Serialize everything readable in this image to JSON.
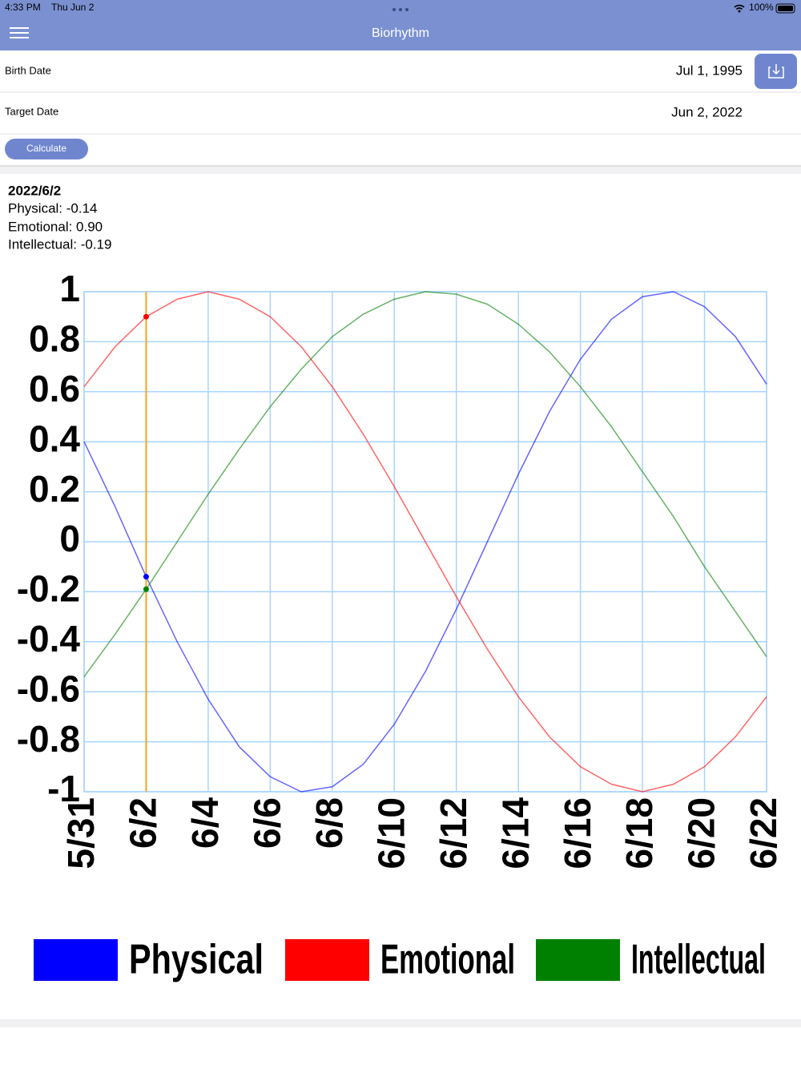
{
  "ui": {
    "status_bar": {
      "time": "4:33 PM",
      "date": "Thu Jun 2",
      "battery": "100%"
    },
    "header": {
      "title": "Biorhythm"
    },
    "form": {
      "birth_label": "Birth Date",
      "birth_value": "Jul 1, 1995",
      "target_label": "Target Date",
      "target_value": "Jun 2, 2022",
      "button": "Calculate"
    },
    "summary": {
      "date": "2022/6/2",
      "lines": [
        "Physical: -0.14",
        "Emotional: 0.90",
        "Intellectual: -0.19"
      ]
    }
  },
  "chart_data": {
    "type": "line",
    "categories": [
      "5/31",
      null,
      "6/2",
      null,
      "6/4",
      null,
      "6/6",
      null,
      "6/8",
      null,
      "6/10",
      null,
      "6/12",
      null,
      "6/14",
      null,
      "6/16",
      null,
      "6/18",
      null,
      "6/20",
      null,
      "6/22"
    ],
    "series": [
      {
        "name": "Physical",
        "color": "#0000ff",
        "values": [
          0.4,
          0.14,
          -0.14,
          -0.4,
          -0.63,
          -0.82,
          -0.94,
          -1.0,
          -0.98,
          -0.89,
          -0.73,
          -0.52,
          -0.27,
          0,
          0.27,
          0.52,
          0.73,
          0.89,
          0.98,
          1.0,
          0.94,
          0.82,
          0.63
        ]
      },
      {
        "name": "Emotional",
        "color": "#ff0000",
        "values": [
          0.62,
          0.78,
          0.9,
          0.97,
          1.0,
          0.97,
          0.9,
          0.78,
          0.62,
          0.43,
          0.22,
          0,
          -0.22,
          -0.43,
          -0.62,
          -0.78,
          -0.9,
          -0.97,
          -1.0,
          -0.97,
          -0.9,
          -0.78,
          -0.62
        ]
      },
      {
        "name": "Intellectual",
        "color": "#008000",
        "values": [
          -0.54,
          -0.37,
          -0.19,
          0,
          0.19,
          0.37,
          0.54,
          0.69,
          0.82,
          0.91,
          0.97,
          1.0,
          0.99,
          0.95,
          0.87,
          0.76,
          0.62,
          0.46,
          0.28,
          0.1,
          -0.1,
          -0.28,
          -0.46
        ]
      }
    ],
    "ylim": [
      -1,
      1
    ],
    "yticks": [
      1,
      0.8,
      0.6,
      0.4,
      0.2,
      0,
      -0.2,
      -0.4,
      -0.6,
      -0.8,
      -1
    ],
    "grid": true,
    "marker": "6/2",
    "marker_color": "#f5a623",
    "grid_color": "#a8d4ff"
  }
}
